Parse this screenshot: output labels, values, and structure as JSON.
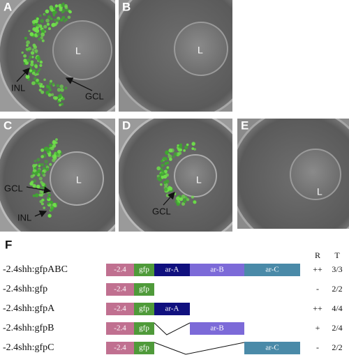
{
  "panels": [
    {
      "letter": "A",
      "labels": [
        "L",
        "INL",
        "GCL"
      ]
    },
    {
      "letter": "B",
      "labels": [
        "L"
      ]
    },
    {
      "letter": "C",
      "labels": [
        "GCL",
        "L",
        "INL"
      ]
    },
    {
      "letter": "D",
      "labels": [
        "L",
        "GCL"
      ]
    },
    {
      "letter": "E",
      "labels": [
        "L"
      ]
    }
  ],
  "figure_f": {
    "letter": "F",
    "headers": [
      "R",
      "T"
    ],
    "constructs": [
      {
        "name": "-2.4shh:gfpABC",
        "segments": [
          "-2.4",
          "gfp",
          "ar-A",
          "ar-B",
          "ar-C"
        ],
        "R": "++",
        "T": "3/3"
      },
      {
        "name": "-2.4shh:gfp",
        "segments": [
          "-2.4",
          "gfp"
        ],
        "R": "-",
        "T": "2/2"
      },
      {
        "name": "-2.4shh:gfpA",
        "segments": [
          "-2.4",
          "gfp",
          "ar-A"
        ],
        "R": "++",
        "T": "4/4"
      },
      {
        "name": "-2.4shh:gfpB",
        "segments": [
          "-2.4",
          "gfp",
          "ar-B"
        ],
        "R": "+",
        "T": "2/4"
      },
      {
        "name": "-2.4shh:gfpC",
        "segments": [
          "-2.4",
          "gfp",
          "ar-C"
        ],
        "R": "-",
        "T": "2/2"
      }
    ]
  }
}
